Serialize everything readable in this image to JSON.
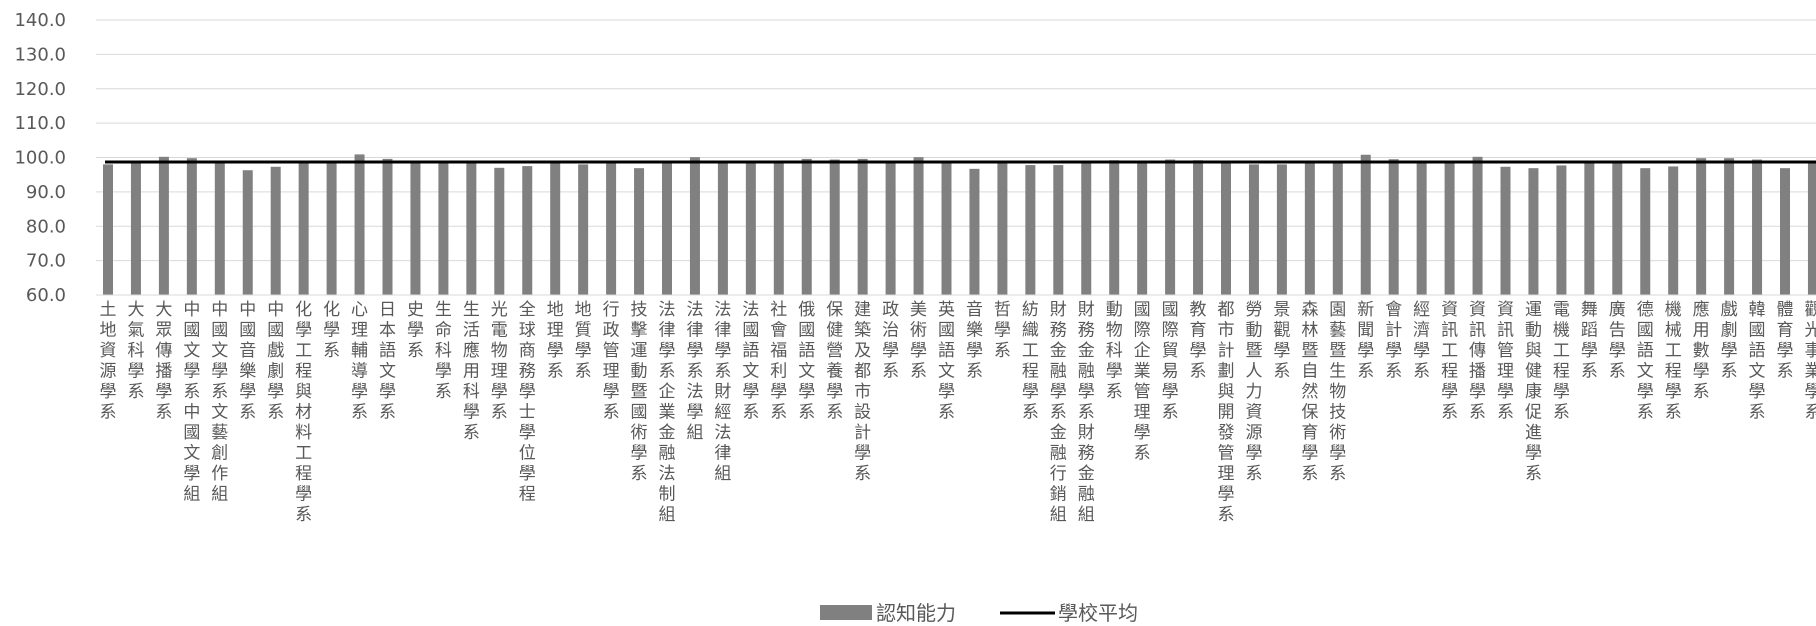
{
  "chart_data": {
    "type": "bar",
    "title": "",
    "xlabel": "",
    "ylabel": "",
    "ylim": [
      60,
      140
    ],
    "yticks": [
      "60.0",
      "70.0",
      "80.0",
      "90.0",
      "100.0",
      "110.0",
      "120.0",
      "130.0",
      "140.0"
    ],
    "grid": true,
    "legend_position": "bottom",
    "colors": {
      "bar": "#808080",
      "line": "#000000",
      "grid": "#d9d9d9",
      "text": "#595959"
    },
    "categories": [
      "土地資源學系",
      "大氣科學系",
      "大眾傳播學系",
      "中國文學系中國文學組",
      "中國文學系文藝創作組",
      "中國音樂學系",
      "中國戲劇學系",
      "化學工程與材料工程學系",
      "化學系",
      "心理輔導學系",
      "日本語文學系",
      "史學系",
      "生命科學系",
      "生活應用科學系",
      "光電物理學系",
      "全球商務學士學位學程",
      "地理學系",
      "地質學系",
      "行政管理學系",
      "技擊運動暨國術學系",
      "法律學系企業金融法制組",
      "法律學系法學組",
      "法律學系財經法律組",
      "法國語文學系",
      "社會福利學系",
      "俄國語文學系",
      "保健營養學系",
      "建築及都市設計學系",
      "政治學系",
      "美術學系",
      "英國語文學系",
      "音樂學系",
      "哲學系",
      "紡織工程學系",
      "財務金融學系金融行銷組",
      "財務金融學系財務金融組",
      "動物科學系",
      "國際企業管理學系",
      "國際貿易學系",
      "教育學系",
      "都市計劃與開發管理學系",
      "勞動暨人力資源學系",
      "景觀學系",
      "森林暨自然保育學系",
      "園藝暨生物技術學系",
      "新聞學系",
      "會計學系",
      "經濟學系",
      "資訊工程學系",
      "資訊傳播學系",
      "資訊管理學系",
      "運動與健康促進學系",
      "電機工程學系",
      "舞蹈學系",
      "廣告學系",
      "德國語文學系",
      "機械工程學系",
      "應用數學系",
      "戲劇學系",
      "韓國語文學系",
      "體育學系",
      "觀光事業學系"
    ],
    "series": [
      {
        "name": "認知能力",
        "type": "bar",
        "values": [
          98.0,
          98.6,
          100.2,
          99.8,
          99.0,
          96.3,
          97.3,
          98.4,
          98.8,
          100.9,
          99.6,
          98.6,
          98.6,
          98.6,
          97.0,
          97.5,
          98.6,
          98.0,
          98.6,
          96.9,
          98.6,
          100.1,
          98.8,
          99.0,
          98.8,
          99.6,
          99.4,
          99.6,
          98.6,
          100.1,
          98.6,
          96.7,
          98.6,
          97.8,
          97.8,
          98.6,
          99.2,
          98.6,
          99.4,
          99.2,
          98.6,
          98.0,
          98.0,
          98.6,
          98.6,
          100.8,
          99.5,
          98.6,
          98.6,
          100.2,
          97.3,
          96.9,
          97.7,
          98.6,
          98.6,
          96.9,
          97.4,
          99.8,
          99.8,
          99.4,
          96.9,
          98.6
        ]
      },
      {
        "name": "學校平均",
        "type": "line",
        "value": 98.7
      }
    ]
  }
}
